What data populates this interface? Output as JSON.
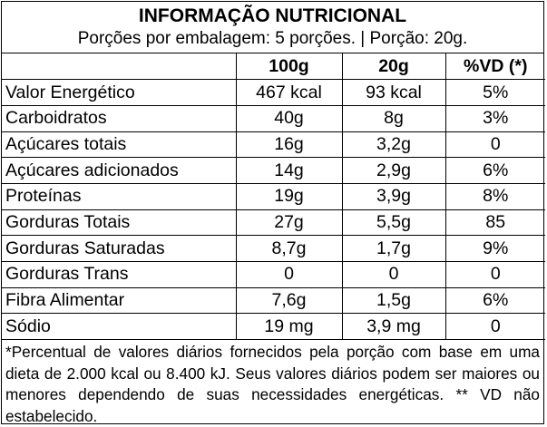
{
  "label": {
    "title": "INFORMAÇÃO NUTRICIONAL",
    "subtitle": "Porções por embalagem: 5 porções. | Porção: 20g.",
    "columns": [
      "",
      "100g",
      "20g",
      "%VD (*)"
    ],
    "rows": [
      {
        "name": "Valor Energético",
        "per100": "467 kcal",
        "perPortion": "93 kcal",
        "vd": "5%"
      },
      {
        "name": "Carboidratos",
        "per100": "40g",
        "perPortion": "8g",
        "vd": "3%"
      },
      {
        "name": "Açúcares totais",
        "per100": "16g",
        "perPortion": "3,2g",
        "vd": "0"
      },
      {
        "name": "Açúcares adicionados",
        "per100": "14g",
        "perPortion": "2,9g",
        "vd": "6%"
      },
      {
        "name": "Proteínas",
        "per100": "19g",
        "perPortion": "3,9g",
        "vd": "8%"
      },
      {
        "name": "Gorduras Totais",
        "per100": "27g",
        "perPortion": "5,5g",
        "vd": "85"
      },
      {
        "name": "Gorduras Saturadas",
        "per100": "8,7g",
        "perPortion": "1,7g",
        "vd": "9%"
      },
      {
        "name": "Gorduras Trans",
        "per100": "0",
        "perPortion": "0",
        "vd": "0"
      },
      {
        "name": "Fibra Alimentar",
        "per100": "7,6g",
        "perPortion": "1,5g",
        "vd": "6%"
      },
      {
        "name": "Sódio",
        "per100": "19 mg",
        "perPortion": "3,9 mg",
        "vd": "0"
      }
    ],
    "footnote": "*Percentual de valores diários fornecidos pela porção com base em uma dieta de 2.000 kcal ou 8.400 kJ. Seus valores diários podem ser maiores ou menores dependendo de suas necessidades energéticas. ** VD não estabelecido."
  }
}
